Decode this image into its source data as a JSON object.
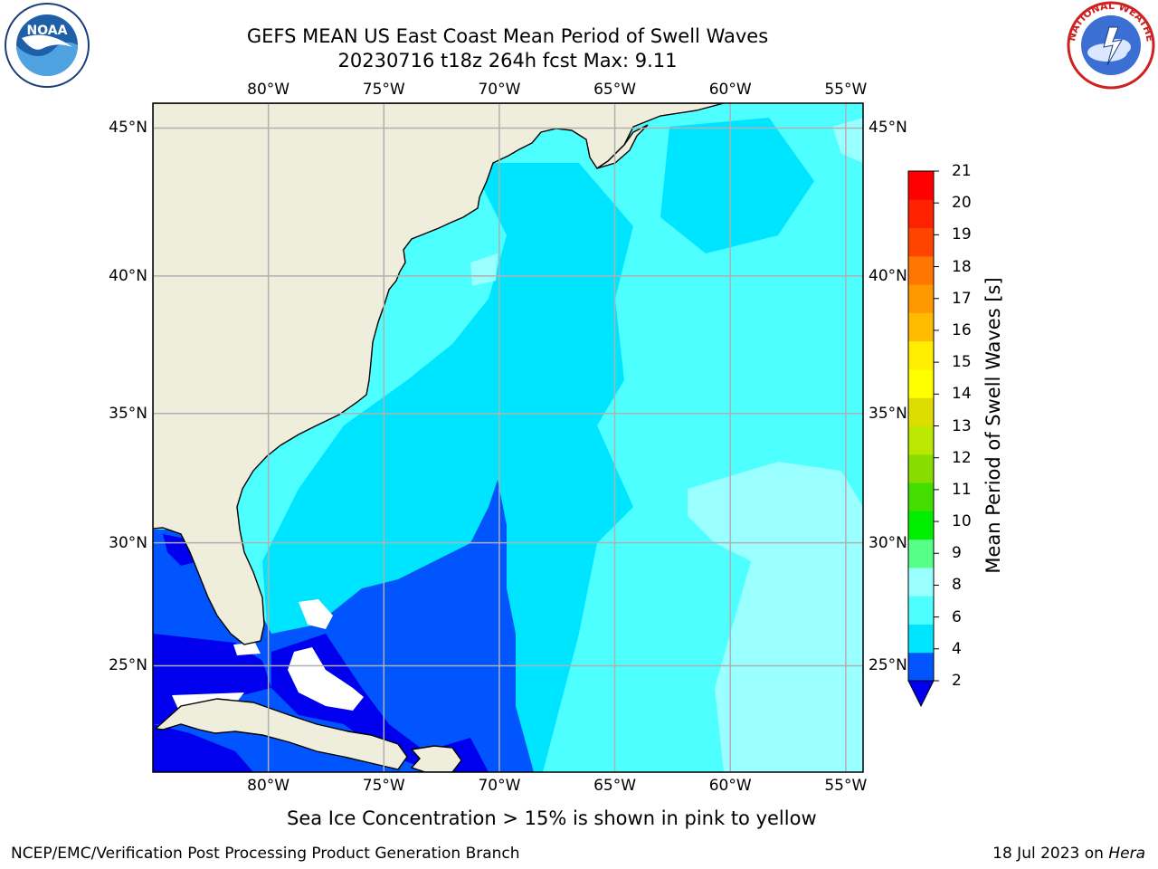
{
  "header": {
    "title_line1": "GEFS MEAN US East Coast Mean Period of Swell Waves",
    "title_line2": "20230716 t18z 264h fcst   Max: 9.11"
  },
  "logos": {
    "left": "noara-logo",
    "right": "nws-logo",
    "nws_text": "NATIONAL WEATHER SERVICE"
  },
  "map": {
    "lon_labels": [
      "80°W",
      "75°W",
      "70°W",
      "65°W",
      "60°W",
      "55°W"
    ],
    "lat_labels": [
      "45°N",
      "40°N",
      "35°N",
      "30°N",
      "25°N"
    ],
    "lon_range": [
      -85,
      -54.25
    ],
    "lat_range": [
      20.5,
      45.8
    ],
    "grid": true,
    "land_color": "#efeddc",
    "coast_color": "#000000"
  },
  "colorbar": {
    "label": "Mean Period of Swell Waves [s]",
    "ticks": [
      "21",
      "20",
      "19",
      "18",
      "17",
      "16",
      "15",
      "14",
      "13",
      "12",
      "11",
      "10",
      "9",
      "8",
      "6",
      "4",
      "2"
    ],
    "colors": [
      "#0055ff",
      "#00e5ff",
      "#4dffff",
      "#99ffff",
      "#55ff88",
      "#00ee00",
      "#44dd00",
      "#88dd00",
      "#bbe800",
      "#dddd00",
      "#ffff00",
      "#ffee00",
      "#ffbb00",
      "#ff9900",
      "#ff7700",
      "#ff4400",
      "#ff2200",
      "#ff0000"
    ],
    "extend_color": "#0000ee",
    "extend": "min"
  },
  "fields": {
    "colors": {
      "band_2_4": "#0055ff",
      "band_4_6": "#00e5ff",
      "band_6_8": "#4dffff",
      "band_8_9": "#99ffff",
      "below_2": "#0000ee",
      "missing": "#ffffff"
    }
  },
  "caption": "Sea Ice Concentration > 15% is shown in pink to yellow",
  "footer": {
    "left": "NCEP/EMC/Verification Post Processing Product Generation Branch",
    "right_date": "18 Jul 2023 on ",
    "right_machine": "Hera"
  }
}
